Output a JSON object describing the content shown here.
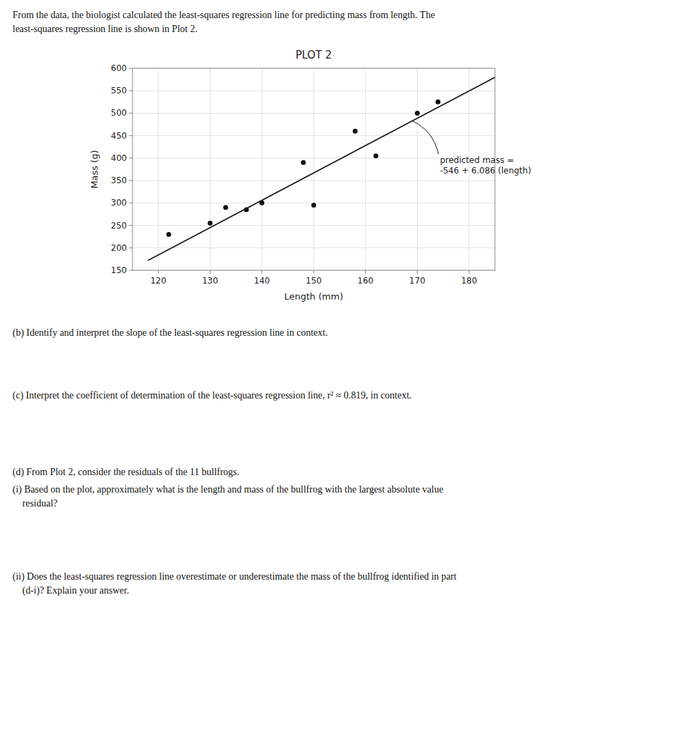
{
  "chart_data": {
    "type": "scatter",
    "title": "PLOT 2",
    "xlabel": "Length (mm)",
    "ylabel": "Mass (g)",
    "xlim": [
      115,
      185
    ],
    "ylim": [
      150,
      600
    ],
    "xticks": [
      120,
      130,
      140,
      150,
      160,
      170,
      180
    ],
    "yticks": [
      150,
      200,
      250,
      300,
      350,
      400,
      450,
      500,
      550,
      600
    ],
    "grid": true,
    "series": [
      {
        "type": "scatter",
        "color": "#111111",
        "x": [
          122,
          130,
          133,
          137,
          140,
          148,
          150,
          158,
          162,
          170,
          174
        ],
        "values": [
          230,
          255,
          290,
          285,
          300,
          390,
          295,
          460,
          405,
          500,
          525
        ]
      },
      {
        "type": "line",
        "color": "#1a1a1a",
        "x": [
          118,
          185
        ],
        "values": [
          172.148,
          579.91
        ]
      }
    ],
    "annotations": [
      {
        "text": [
          "predicted mass =",
          "-546 + 6.086 (length)"
        ],
        "x": 169,
        "y": 483
      }
    ]
  },
  "page_text": [
    "From the data, the biologist calculated the least-squares regression line for predicting mass from length. The",
    "least-squares regression line is shown in Plot 2.",
    "(b) Identify and interpret the slope of the least-squares regression line in context.",
    "(c) Interpret the coefficient of determination of the least-squares regression line, r² ≈ 0.819, in context.",
    "(d) From Plot 2, consider the residuals of the 11 bullfrogs.",
    "(i) Based on the plot, approximately what is the length and mass of the bullfrog with the largest absolute value",
    "    residual?",
    "(ii) Does the least-squares regression line overestimate or underestimate the mass of the bullfrog identified in part",
    "    (d-i)? Explain your answer."
  ]
}
